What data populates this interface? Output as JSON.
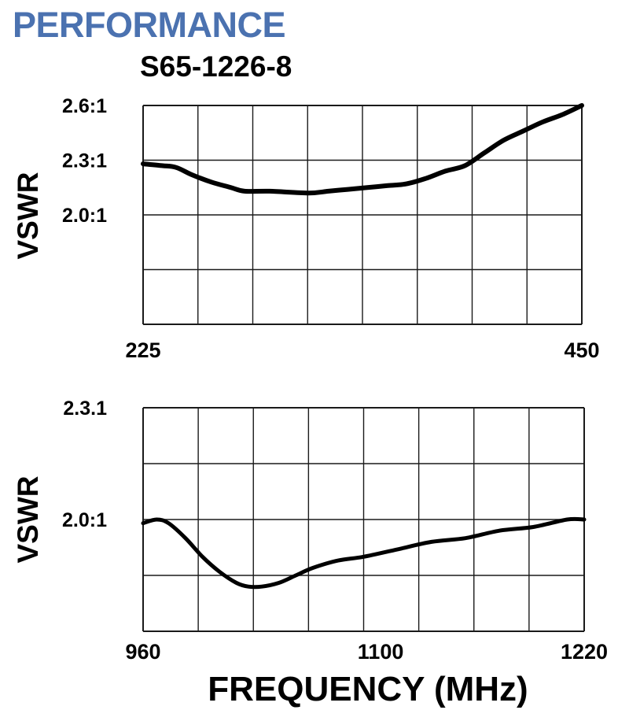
{
  "header": {
    "title": "PERFORMANCE",
    "model": "S65-1226-8"
  },
  "colors": {
    "title": "#4b72b0",
    "grid": "#1a1a1a",
    "curve": "#000000"
  },
  "chart_data": [
    {
      "type": "line",
      "ylabel": "VSWR",
      "xlabel": "",
      "xlim": [
        225,
        450
      ],
      "ylim": [
        1.4,
        2.6
      ],
      "x_tick_labels": [
        {
          "value": 225,
          "label": "225"
        },
        {
          "value": 450,
          "label": "450"
        }
      ],
      "y_tick_labels": [
        {
          "value": 2.6,
          "label": "2.6:1"
        },
        {
          "value": 2.3,
          "label": "2.3:1"
        },
        {
          "value": 2.0,
          "label": "2.0:1"
        }
      ],
      "grid": true,
      "series": [
        {
          "x": [
            225,
            235,
            242,
            250,
            260,
            270,
            277,
            290,
            310,
            320,
            330,
            340,
            350,
            360,
            370,
            380,
            390,
            400,
            410,
            420,
            430,
            440,
            450
          ],
          "y": [
            2.28,
            2.27,
            2.26,
            2.22,
            2.18,
            2.15,
            2.13,
            2.13,
            2.12,
            2.13,
            2.14,
            2.15,
            2.16,
            2.17,
            2.2,
            2.24,
            2.27,
            2.34,
            2.41,
            2.46,
            2.51,
            2.55,
            2.6
          ]
        }
      ]
    },
    {
      "type": "line",
      "ylabel": "VSWR",
      "xlabel": "FREQUENCY (MHz)",
      "xlim": [
        960,
        1220
      ],
      "ylim": [
        1.7,
        2.3
      ],
      "x_tick_labels": [
        {
          "value": 960,
          "label": "960"
        },
        {
          "value": 1100,
          "label": "1100"
        },
        {
          "value": 1220,
          "label": "1220"
        }
      ],
      "y_tick_labels": [
        {
          "value": 2.3,
          "label": "2.3.1"
        },
        {
          "value": 2.0,
          "label": "2.0:1"
        }
      ],
      "grid": true,
      "series": [
        {
          "x": [
            960,
            968,
            975,
            985,
            995,
            1005,
            1015,
            1022,
            1030,
            1040,
            1050,
            1060,
            1075,
            1090,
            1110,
            1130,
            1150,
            1170,
            1190,
            1210,
            1220
          ],
          "y": [
            1.99,
            2.0,
            1.99,
            1.95,
            1.9,
            1.86,
            1.83,
            1.82,
            1.82,
            1.83,
            1.85,
            1.87,
            1.89,
            1.9,
            1.92,
            1.94,
            1.95,
            1.97,
            1.98,
            2.0,
            2.0
          ]
        }
      ]
    }
  ]
}
